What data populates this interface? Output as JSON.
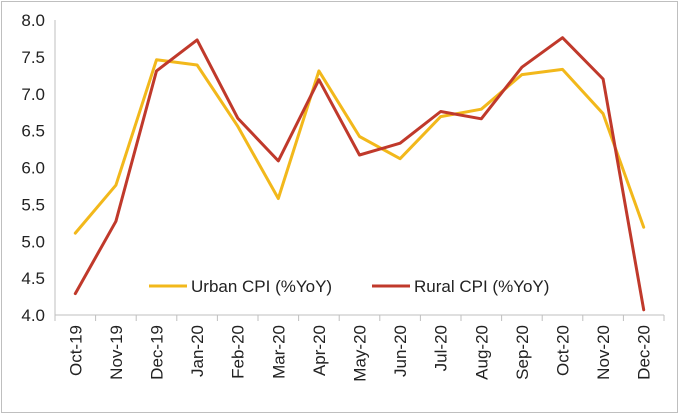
{
  "chart_data": {
    "type": "line",
    "title": "",
    "xlabel": "",
    "ylabel": "",
    "categories": [
      "Oct-19",
      "Nov-19",
      "Dec-19",
      "Jan-20",
      "Feb-20",
      "Mar-20",
      "Apr-20",
      "May-20",
      "Jun-20",
      "Jul-20",
      "Aug-20",
      "Sep-20",
      "Oct-20",
      "Nov-20",
      "Dec-20"
    ],
    "ylim": [
      4.0,
      8.0
    ],
    "yticks": [
      "4.0",
      "4.5",
      "5.0",
      "5.5",
      "6.0",
      "6.5",
      "7.0",
      "7.5",
      "8.0"
    ],
    "grid": false,
    "legend_position": "bottom-center",
    "series": [
      {
        "name": "Urban CPI (%YoY)",
        "color": "#F2B81B",
        "values": [
          5.11,
          5.76,
          7.46,
          7.39,
          6.56,
          5.58,
          7.31,
          6.42,
          6.12,
          6.69,
          6.79,
          7.26,
          7.33,
          6.73,
          5.19
        ]
      },
      {
        "name": "Rural CPI (%YoY)",
        "color": "#C0392B",
        "values": [
          4.29,
          5.27,
          7.31,
          7.73,
          6.67,
          6.09,
          7.19,
          6.17,
          6.33,
          6.76,
          6.66,
          7.36,
          7.76,
          7.2,
          4.07
        ]
      }
    ]
  }
}
